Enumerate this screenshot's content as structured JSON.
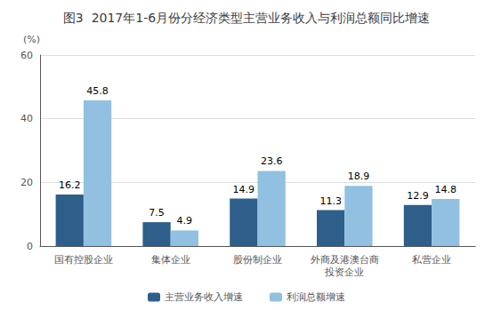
{
  "chart_data": {
    "type": "bar",
    "title": "图3  2017年1-6月份分经济类型主营业务收入与利润总额同比增速",
    "ylabel": "(%)",
    "categories": [
      "国有控股企业",
      "集体企业",
      "股份制企业",
      "外商及港澳台商\n投资企业",
      "私营企业"
    ],
    "series": [
      {
        "name": "主营业务收入增速",
        "color": "#2e5f8a",
        "values": [
          16.2,
          7.5,
          14.9,
          11.3,
          12.9
        ]
      },
      {
        "name": "利润总额增速",
        "color": "#92c0e0",
        "values": [
          45.8,
          4.9,
          23.6,
          18.9,
          14.8
        ]
      }
    ],
    "ylim": [
      0,
      60
    ],
    "yticks": [
      0,
      20,
      40,
      60
    ],
    "grid": true,
    "legend": "bottom",
    "data_labels": true
  }
}
